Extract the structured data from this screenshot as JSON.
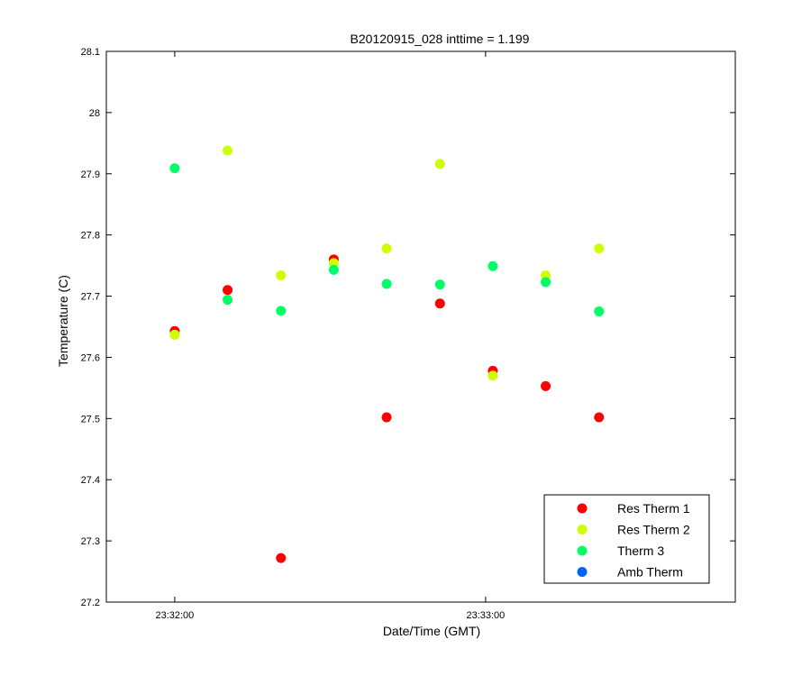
{
  "chart_data": {
    "type": "scatter",
    "title": "B20120915_028 inttime = 1.199",
    "xlabel": "Date/Time (GMT)",
    "ylabel": "Temperature (C)",
    "x_ticks": [
      {
        "t": 0,
        "label": "23:32:00"
      },
      {
        "t": 60,
        "label": "23:33:00"
      }
    ],
    "x_unit": "seconds after 23:32:00",
    "xlim": [
      -13.2,
      108.2
    ],
    "ylim": [
      27.2,
      28.1
    ],
    "y_ticks": [
      27.2,
      27.3,
      27.4,
      27.5,
      27.6,
      27.7,
      27.8,
      27.9,
      28,
      28.1
    ],
    "grid": false,
    "legend_position": "bottom-right",
    "series": [
      {
        "name": "Res Therm 1",
        "color": "#ff0000",
        "x": [
          0,
          10.2,
          20.5,
          30.7,
          40.9,
          51.2,
          61.4,
          71.6,
          81.9
        ],
        "y": [
          27.643,
          27.71,
          27.272,
          27.76,
          27.502,
          27.688,
          27.578,
          27.553,
          27.502
        ]
      },
      {
        "name": "Res Therm 2",
        "color": "#ccff00",
        "x": [
          0,
          10.2,
          20.5,
          30.7,
          40.9,
          51.2,
          61.4,
          71.6,
          81.9
        ],
        "y": [
          27.637,
          27.938,
          27.734,
          27.754,
          27.778,
          27.916,
          27.57,
          27.734,
          27.778
        ]
      },
      {
        "name": "Therm 3",
        "color": "#00ff66",
        "x": [
          0,
          10.2,
          20.5,
          30.7,
          40.9,
          51.2,
          61.4,
          71.6,
          81.9
        ],
        "y": [
          27.909,
          27.694,
          27.676,
          27.743,
          27.72,
          27.719,
          27.749,
          27.723,
          27.675
        ]
      },
      {
        "name": "Amb Therm",
        "color": "#0066ff",
        "x": [],
        "y": []
      }
    ]
  }
}
